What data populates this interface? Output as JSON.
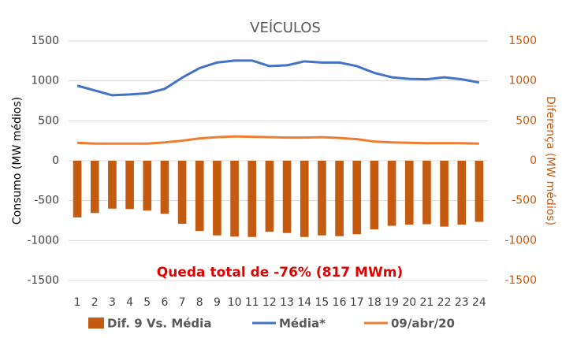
{
  "chart_data": {
    "type": "combo",
    "title": "VEÍCULOS",
    "y_label": "Consumo  (MW médios)",
    "y2_label": "Diferença  (MW médios)",
    "annotation": "Queda total de -76% (817 MWm)",
    "categories": [
      "1",
      "2",
      "3",
      "4",
      "5",
      "6",
      "7",
      "8",
      "9",
      "10",
      "11",
      "12",
      "13",
      "14",
      "15",
      "16",
      "17",
      "18",
      "19",
      "20",
      "21",
      "22",
      "23",
      "24"
    ],
    "series": [
      {
        "name": "Dif. 9 Vs. Média",
        "type": "bar",
        "axis": "y2",
        "color": "#c55a11",
        "values": [
          -710,
          -655,
          -600,
          -605,
          -625,
          -665,
          -790,
          -880,
          -935,
          -950,
          -955,
          -890,
          -905,
          -955,
          -935,
          -945,
          -920,
          -860,
          -815,
          -800,
          -795,
          -825,
          -800,
          -765
        ]
      },
      {
        "name": "Média*",
        "type": "line",
        "color": "#4472c4",
        "values": [
          940,
          880,
          820,
          830,
          845,
          900,
          1040,
          1160,
          1230,
          1255,
          1255,
          1185,
          1195,
          1245,
          1230,
          1230,
          1185,
          1100,
          1045,
          1025,
          1020,
          1045,
          1020,
          980
        ]
      },
      {
        "name": "09/abr/20",
        "type": "line",
        "color": "#ed7d31",
        "values": [
          225,
          215,
          215,
          215,
          215,
          230,
          250,
          280,
          295,
          305,
          300,
          295,
          290,
          290,
          295,
          285,
          270,
          240,
          230,
          225,
          220,
          220,
          220,
          215
        ]
      }
    ],
    "ylim": [
      -1500,
      1500
    ],
    "yticks": [
      -1500,
      -1000,
      -500,
      0,
      500,
      1000,
      1500
    ],
    "y2lim": [
      -1500,
      1500
    ],
    "y2ticks": [
      -1500,
      -1000,
      -500,
      0,
      500,
      1000,
      1500
    ],
    "grid": true
  }
}
